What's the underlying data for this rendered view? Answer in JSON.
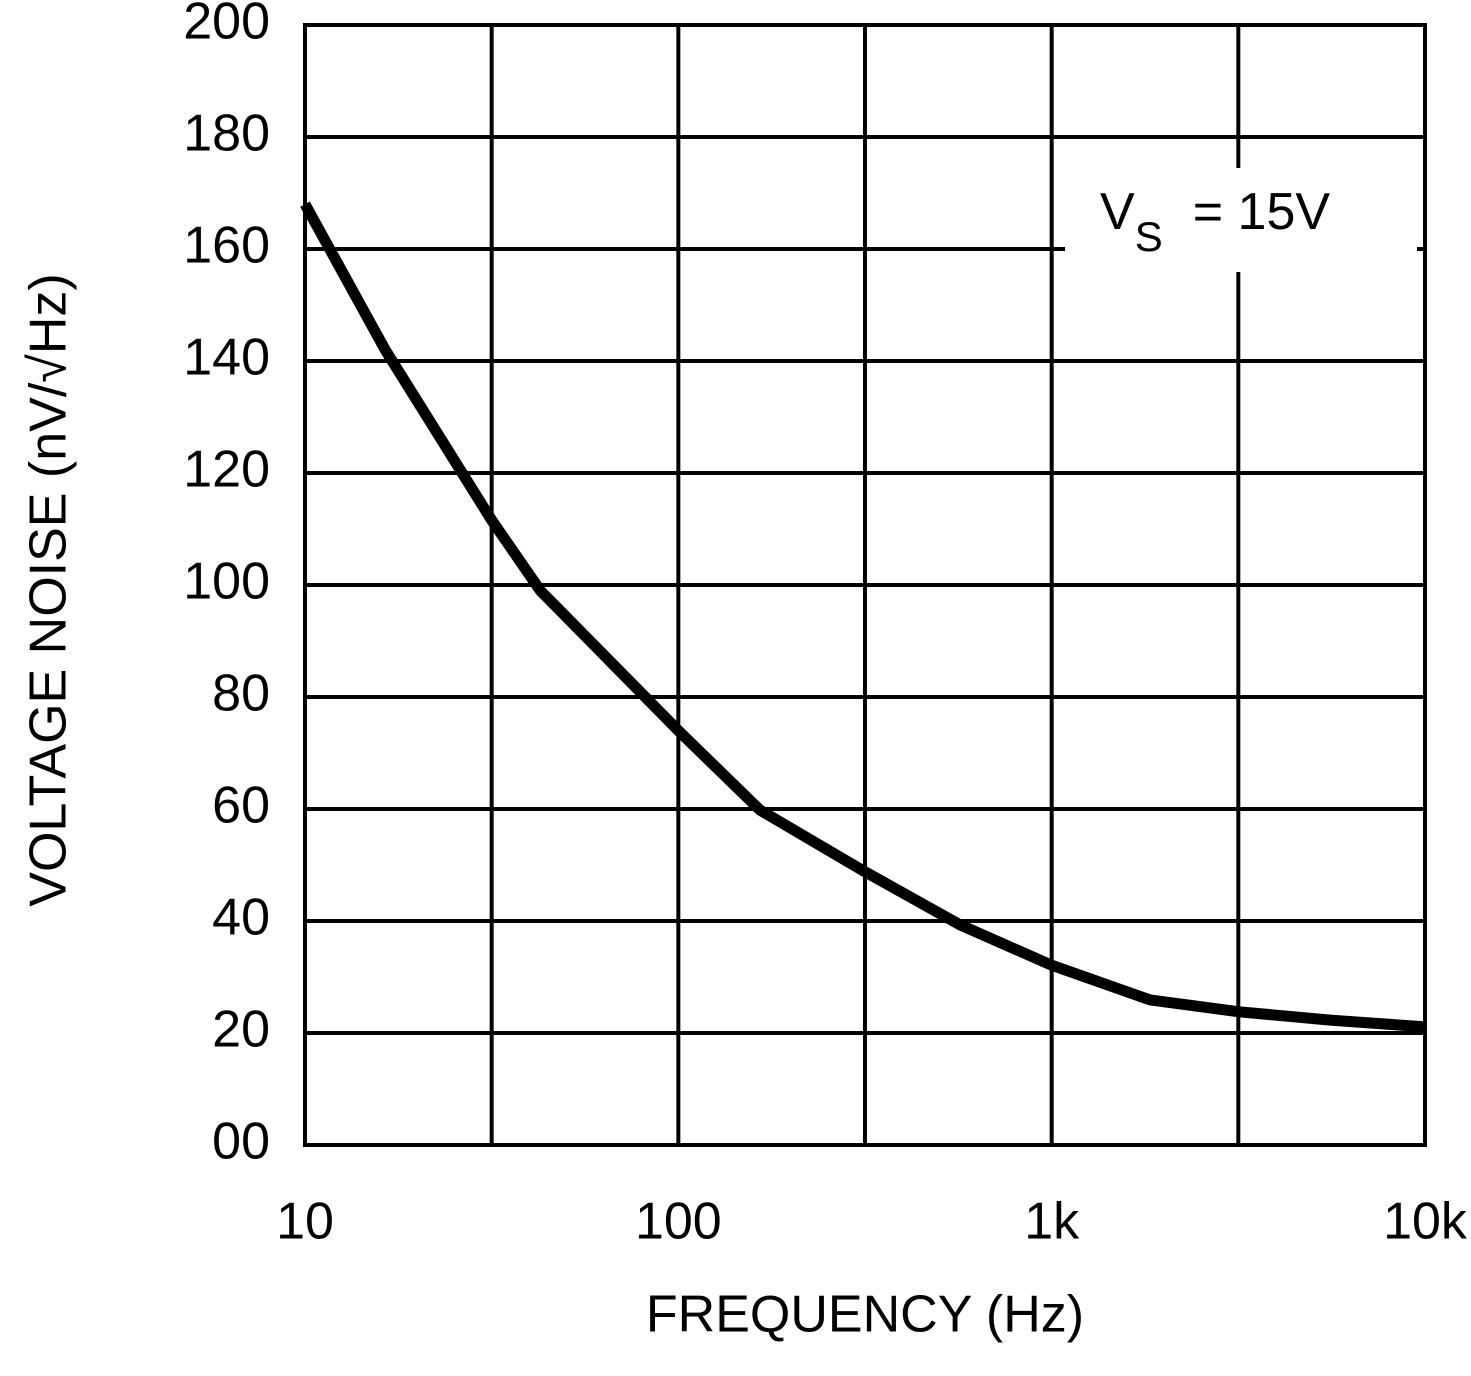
{
  "chart_data": {
    "type": "line",
    "x_label": "FREQUENCY (Hz)",
    "y_label": "VOLTAGE NOISE (nV/√Hz)",
    "annotation": {
      "main": "V",
      "subscript": "S",
      "tail": "= 15V"
    },
    "x_scale": "log",
    "xlim": [
      10,
      10000
    ],
    "ylim": [
      0,
      200
    ],
    "xticks": [
      {
        "value": 10,
        "label": "10"
      },
      {
        "value": 100,
        "label": "100"
      },
      {
        "value": 1000,
        "label": "1k"
      },
      {
        "value": 10000,
        "label": "10k"
      }
    ],
    "x_minor_grid": [
      31.62,
      316.2,
      3162
    ],
    "yticks": [
      {
        "value": 0,
        "label": "00"
      },
      20,
      40,
      60,
      80,
      100,
      120,
      140,
      160,
      180,
      200
    ],
    "grid": true,
    "series": [
      {
        "name": null,
        "color": "#000000",
        "x": [
          10,
          16.4,
          31.6,
          42.7,
          100,
          165.5,
          316,
          569,
          1000,
          1836,
          3162,
          5572,
          10000
        ],
        "values": [
          168,
          142,
          111.6,
          99,
          74,
          59.8,
          48.8,
          39.3,
          32.1,
          25.9,
          23.8,
          22.3,
          21.1
        ]
      }
    ]
  }
}
